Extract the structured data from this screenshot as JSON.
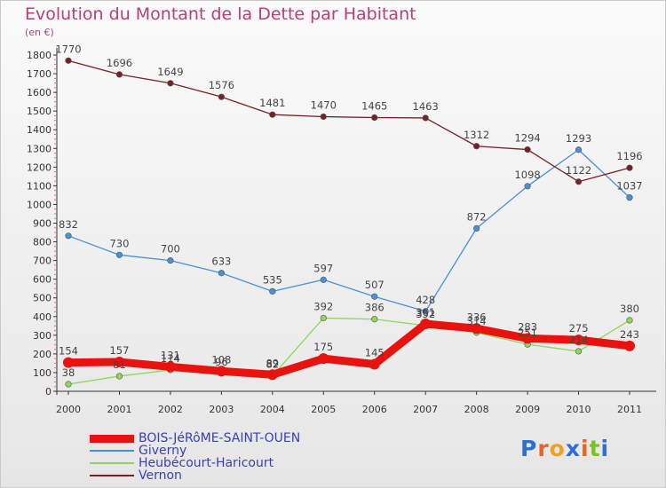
{
  "title": "Evolution du Montant de la Dette par Habitant",
  "unit": "(en €)",
  "logo": "Proxiti",
  "colors": {
    "title": "#b5407a",
    "axis": "#333333",
    "labels": "#444444",
    "legend_text": "#3a3fb4"
  },
  "chart_data": {
    "type": "line",
    "title": "Evolution du Montant de la Dette par Habitant",
    "ylabel": "(en €)",
    "xlabel": "",
    "x": [
      "2000",
      "2001",
      "2002",
      "2003",
      "2004",
      "2005",
      "2006",
      "2007",
      "2008",
      "2009",
      "2010",
      "2011"
    ],
    "ylim": [
      0,
      1800
    ],
    "yticks": [
      0,
      100,
      200,
      300,
      400,
      500,
      600,
      700,
      800,
      900,
      1000,
      1100,
      1200,
      1300,
      1400,
      1500,
      1600,
      1700,
      1800
    ],
    "legend_position": "bottom-left",
    "series": [
      {
        "name": "BOIS-JéRôME-SAINT-OUEN",
        "color": "#e8120f",
        "values": [
          154,
          157,
          131,
          108,
          89,
          175,
          145,
          361,
          336,
          283,
          275,
          243
        ]
      },
      {
        "name": "Giverny",
        "color": "#4a90d9",
        "values": [
          832,
          730,
          700,
          633,
          535,
          597,
          507,
          428,
          872,
          1098,
          1293,
          1037
        ]
      },
      {
        "name": "Heubécourt-Haricourt",
        "color": "#8fd65a",
        "values": [
          38,
          81,
          114,
          96,
          82,
          392,
          386,
          352,
          314,
          251,
          214,
          380
        ]
      },
      {
        "name": "Vernon",
        "color": "#7a1f28",
        "values": [
          1770,
          1696,
          1649,
          1576,
          1481,
          1470,
          1465,
          1463,
          1312,
          1294,
          1122,
          1196
        ]
      }
    ]
  }
}
